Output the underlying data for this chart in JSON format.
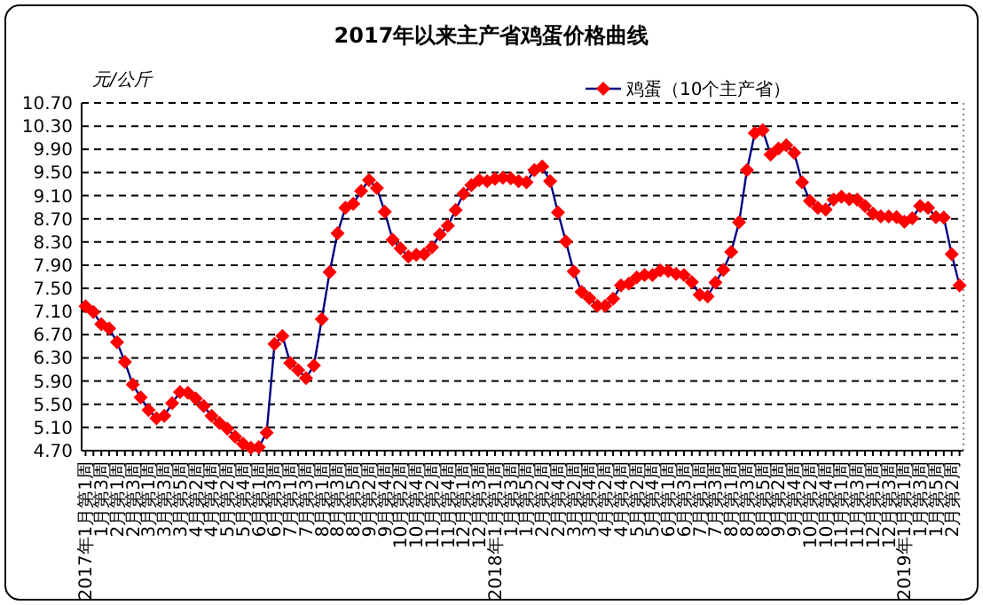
{
  "chart_data": {
    "type": "line",
    "title": "2017年以来主产省鸡蛋价格曲线",
    "ylabel": "元/公斤",
    "categories": [
      "2017年1月第1周",
      null,
      "1月第3周",
      null,
      "2月第1周",
      null,
      "2月第3周",
      null,
      "3月第1周",
      null,
      "3月第3周",
      null,
      "3月第5周",
      null,
      "4月第2周",
      null,
      "4月第4周",
      null,
      "5月第2周",
      null,
      "5月第4周",
      null,
      "6月第1周",
      null,
      "6月第3周",
      null,
      "7月第1周",
      null,
      "7月第3周",
      null,
      "8月第1周",
      null,
      "8月第3周",
      null,
      "8月第5周",
      null,
      "9月第2周",
      null,
      "9月第4周",
      null,
      "10月第2周",
      null,
      "10月第4周",
      null,
      "11月第2周",
      null,
      "11月第4周",
      null,
      "12月第1周",
      null,
      "12月第3周",
      null,
      "2018年1月第1周",
      null,
      "1月第3周",
      null,
      "1月第5周",
      null,
      "2月第2周",
      null,
      "2月第4周",
      null,
      "3月第2周",
      null,
      "3月第4周",
      null,
      "4月第2周",
      null,
      "4月第4周",
      null,
      "5月第2周",
      null,
      "5月第4周",
      null,
      "6月第1周",
      null,
      "6月第3周",
      null,
      "7月第1周",
      null,
      "7月第3周",
      null,
      "8月第1周",
      null,
      "8月第3周",
      null,
      "8月第5周",
      null,
      "9月第2周",
      null,
      "9月第4周",
      null,
      "10月第2周",
      null,
      "10月第4周",
      null,
      "11月第1周",
      null,
      "11月第3周",
      null,
      "12月第1周",
      null,
      "12月第3周",
      null,
      "2019年1月第1周",
      null,
      "1月第3周",
      null,
      "1月第5周",
      null,
      "2月第2周",
      null
    ],
    "series": [
      {
        "name": "鸡蛋（10个主产省）",
        "color": "#ff0000",
        "values": [
          7.19,
          7.09,
          6.88,
          6.81,
          6.57,
          6.23,
          5.84,
          5.62,
          5.4,
          5.26,
          5.3,
          5.52,
          5.71,
          5.7,
          5.6,
          5.47,
          5.3,
          5.18,
          5.08,
          4.94,
          4.82,
          4.75,
          4.76,
          5.01,
          6.54,
          6.68,
          6.21,
          6.09,
          5.95,
          6.17,
          6.97,
          7.78,
          8.45,
          8.89,
          8.96,
          9.18,
          9.37,
          9.23,
          8.82,
          8.34,
          8.19,
          8.05,
          8.08,
          8.09,
          8.21,
          8.43,
          8.58,
          8.85,
          9.13,
          9.28,
          9.37,
          9.35,
          9.39,
          9.41,
          9.4,
          9.35,
          9.33,
          9.54,
          9.6,
          9.35,
          8.81,
          8.31,
          7.79,
          7.44,
          7.33,
          7.2,
          7.2,
          7.32,
          7.55,
          7.58,
          7.69,
          7.73,
          7.73,
          7.81,
          7.8,
          7.75,
          7.73,
          7.61,
          7.39,
          7.36,
          7.6,
          7.82,
          8.13,
          8.64,
          9.54,
          10.18,
          10.23,
          9.81,
          9.91,
          9.97,
          9.84,
          9.33,
          9.01,
          8.89,
          8.86,
          9.03,
          9.08,
          9.04,
          9.03,
          8.92,
          8.79,
          8.74,
          8.74,
          8.73,
          8.65,
          8.71,
          8.92,
          8.89,
          8.73,
          8.72,
          8.09,
          7.55
        ]
      }
    ],
    "ylim": [
      4.7,
      10.7
    ],
    "yticks": [
      {
        "value": 4.7,
        "label": "4.70"
      },
      {
        "value": 5.1,
        "label": "5.10"
      },
      {
        "value": 5.5,
        "label": "5.50"
      },
      {
        "value": 5.9,
        "label": "5.90"
      },
      {
        "value": 6.3,
        "label": "6.30"
      },
      {
        "value": 6.7,
        "label": "6.70"
      },
      {
        "value": 7.1,
        "label": "7.10"
      },
      {
        "value": 7.5,
        "label": "7.50"
      },
      {
        "value": 7.9,
        "label": "7.90"
      },
      {
        "value": 8.3,
        "label": "8.30"
      },
      {
        "value": 8.7,
        "label": "8.70"
      },
      {
        "value": 9.1,
        "label": "9.10"
      },
      {
        "value": 9.5,
        "label": "9.50"
      },
      {
        "value": 9.9,
        "label": "9.90"
      },
      {
        "value": 10.3,
        "label": "10.30"
      },
      {
        "value": 10.7,
        "label": "10.70"
      }
    ],
    "grid": "y",
    "legend": "top right",
    "marker": "diamond",
    "line_style": "solid"
  }
}
